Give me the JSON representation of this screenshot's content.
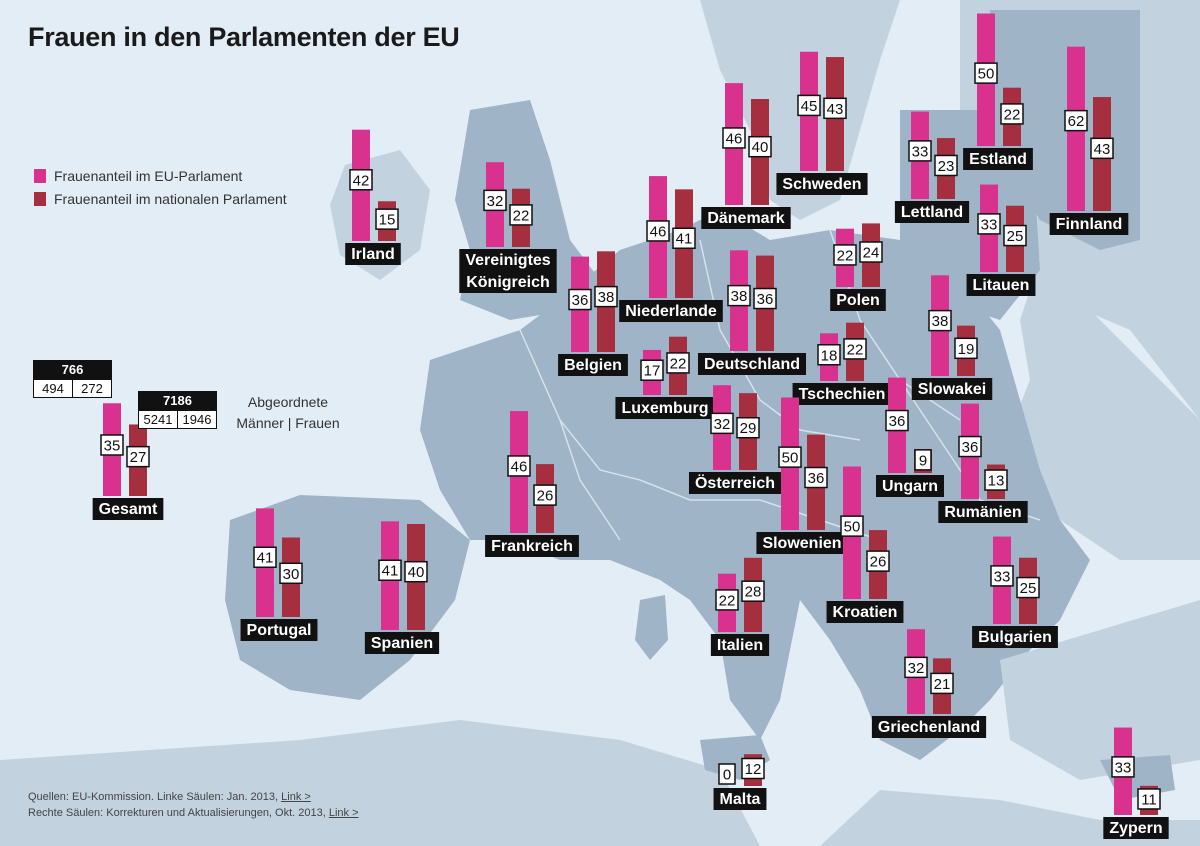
{
  "title": "Frauen in den Parlamenten der EU",
  "legend": {
    "eu": "Frauenanteil im EU-Parlament",
    "national": "Frauenanteil im nationalen Parlament"
  },
  "colors": {
    "eu": "#d9328e",
    "national": "#a52f3f",
    "label_bg": "#111111",
    "map_land": "#9fb4c6",
    "map_light": "#c2d2df",
    "sea": "#e3edf5"
  },
  "totals_caption": {
    "line1": "Abgeordnete",
    "line2": "Männer | Frauen"
  },
  "totals": {
    "eu": {
      "total": "766",
      "men": "494",
      "women": "272"
    },
    "national": {
      "total": "7186",
      "men": "5241",
      "women": "1946"
    }
  },
  "sources": {
    "line1": "Quellen: EU-Kommission. Linke Säulen: Jan. 2013,",
    "line2": "Rechte Säulen: Korrekturen und Aktualisierungen, Okt. 2013,",
    "link": "Link >"
  },
  "chart_data": {
    "type": "bar",
    "title": "Frauen in den Parlamenten der EU",
    "unit": "%",
    "series": [
      {
        "name": "Frauenanteil im EU-Parlament",
        "color": "#d9328e"
      },
      {
        "name": "Frauenanteil im nationalen Parlament",
        "color": "#a52f3f"
      }
    ],
    "countries": [
      {
        "name": "Gesamt",
        "eu": 35,
        "national": 27
      },
      {
        "name": "Irland",
        "eu": 42,
        "national": 15
      },
      {
        "name": "Vereinigtes Königreich",
        "eu": 32,
        "national": 22
      },
      {
        "name": "Belgien",
        "eu": 36,
        "national": 38
      },
      {
        "name": "Niederlande",
        "eu": 46,
        "national": 41
      },
      {
        "name": "Luxemburg",
        "eu": 17,
        "national": 22
      },
      {
        "name": "Dänemark",
        "eu": 46,
        "national": 40
      },
      {
        "name": "Deutschland",
        "eu": 38,
        "national": 36
      },
      {
        "name": "Schweden",
        "eu": 45,
        "national": 43
      },
      {
        "name": "Polen",
        "eu": 22,
        "national": 24
      },
      {
        "name": "Tschechien",
        "eu": 18,
        "national": 22
      },
      {
        "name": "Lettland",
        "eu": 33,
        "national": 23
      },
      {
        "name": "Estland",
        "eu": 50,
        "national": 22
      },
      {
        "name": "Litauen",
        "eu": 33,
        "national": 25
      },
      {
        "name": "Finnland",
        "eu": 62,
        "national": 43
      },
      {
        "name": "Slowakei",
        "eu": 38,
        "national": 19
      },
      {
        "name": "Ungarn",
        "eu": 36,
        "national": 9
      },
      {
        "name": "Rumänien",
        "eu": 36,
        "national": 13
      },
      {
        "name": "Österreich",
        "eu": 32,
        "national": 29
      },
      {
        "name": "Slowenien",
        "eu": 50,
        "national": 36
      },
      {
        "name": "Kroatien",
        "eu": 50,
        "national": 26
      },
      {
        "name": "Frankreich",
        "eu": 46,
        "national": 26
      },
      {
        "name": "Portugal",
        "eu": 41,
        "national": 30
      },
      {
        "name": "Spanien",
        "eu": 41,
        "national": 40
      },
      {
        "name": "Italien",
        "eu": 22,
        "national": 28
      },
      {
        "name": "Bulgarien",
        "eu": 33,
        "national": 25
      },
      {
        "name": "Griechenland",
        "eu": 32,
        "national": 21
      },
      {
        "name": "Malta",
        "eu": 0,
        "national": 12
      },
      {
        "name": "Zypern",
        "eu": 33,
        "national": 11
      }
    ]
  }
}
